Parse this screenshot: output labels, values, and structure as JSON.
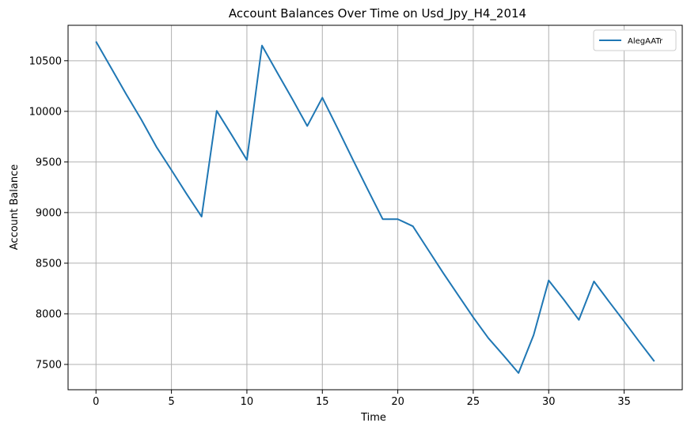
{
  "chart_data": {
    "type": "line",
    "title": "Account Balances Over Time on Usd_Jpy_H4_2014",
    "xlabel": "Time",
    "ylabel": "Account Balance",
    "xlim": [
      -1.85,
      38.85
    ],
    "ylim": [
      7250,
      10850
    ],
    "xticks": [
      0,
      5,
      10,
      15,
      20,
      25,
      30,
      35
    ],
    "yticks": [
      7500,
      8000,
      8500,
      9000,
      9500,
      10000,
      10500
    ],
    "grid": true,
    "legend_position": "top-right",
    "series": [
      {
        "name": "AlegAATr",
        "color": "#1f77b4",
        "x": [
          0,
          1,
          2,
          3,
          4,
          5,
          6,
          7,
          8,
          9,
          10,
          11,
          12,
          13,
          14,
          15,
          16,
          17,
          18,
          19,
          20,
          21,
          22,
          23,
          24,
          25,
          26,
          27,
          28,
          29,
          30,
          31,
          32,
          33,
          34,
          35,
          36,
          37
        ],
        "y": [
          10690,
          10430,
          10170,
          9920,
          9650,
          9420,
          9185,
          8960,
          10005,
          9765,
          9520,
          10650,
          10385,
          10125,
          9855,
          10135,
          9835,
          9530,
          9230,
          8935,
          8935,
          8865,
          8635,
          8405,
          8185,
          7965,
          7760,
          7590,
          7415,
          7790,
          8330,
          8140,
          7940,
          8320,
          8120,
          7925,
          7725,
          7530
        ]
      }
    ]
  }
}
